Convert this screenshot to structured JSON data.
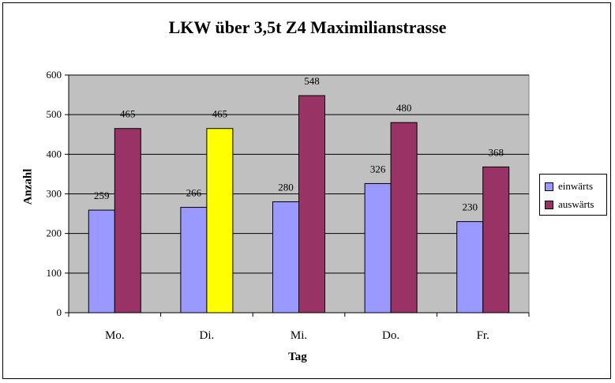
{
  "chart_data": {
    "type": "bar",
    "title": "LKW über 3,5t Z4 Maximilianstrasse",
    "xlabel": "Tag",
    "ylabel": "Anzahl",
    "categories": [
      "Mo.",
      "Di.",
      "Mi.",
      "Do.",
      "Fr."
    ],
    "series": [
      {
        "name": "einwärts",
        "values": [
          259,
          266,
          280,
          326,
          230
        ],
        "color": "#9999ff"
      },
      {
        "name": "auswärts",
        "values": [
          465,
          465,
          548,
          480,
          368
        ],
        "color": "#993366"
      }
    ],
    "highlight": {
      "series": 1,
      "category": 1,
      "color": "#ffff00"
    },
    "ylim": [
      0,
      600
    ],
    "yticks": [
      0,
      100,
      200,
      300,
      400,
      500,
      600
    ],
    "grid": true,
    "plot_background": "#c0c0c0",
    "legend_position": "right"
  }
}
